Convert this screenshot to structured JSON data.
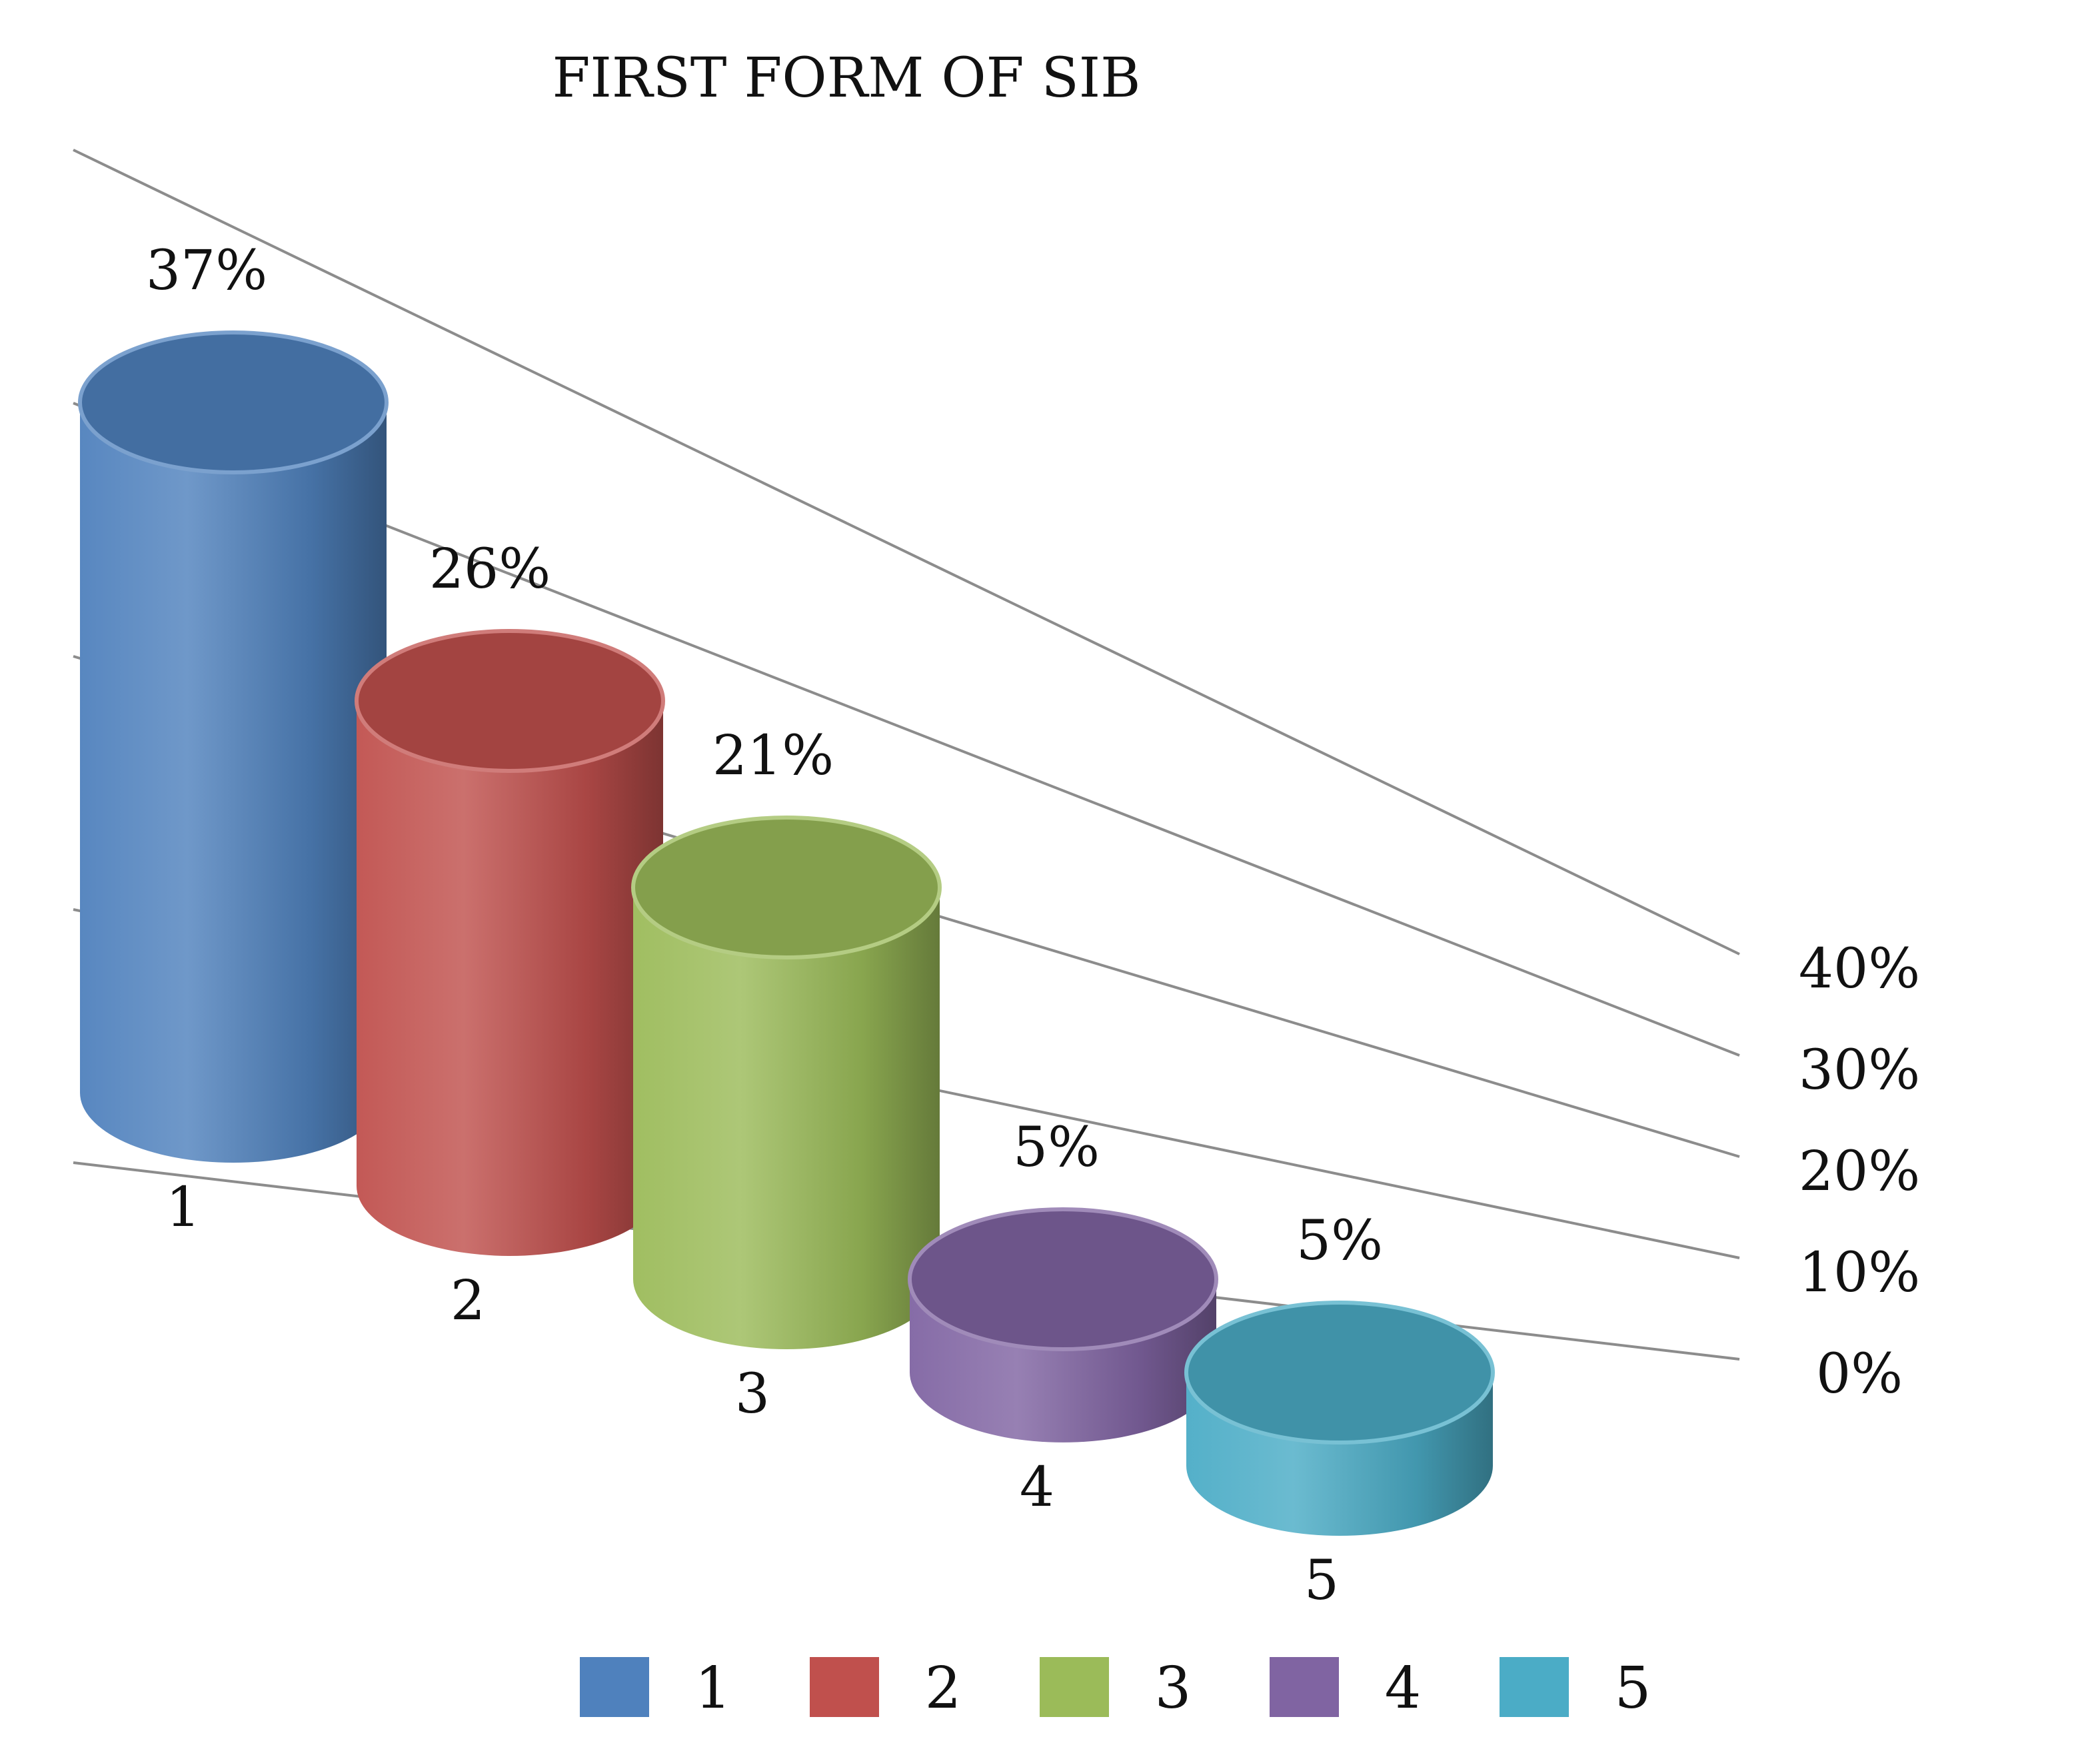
{
  "chart_data": {
    "type": "bar",
    "style": "3d-cylinder",
    "title": "FIRST FORM OF SIB",
    "categories": [
      "1",
      "2",
      "3",
      "4",
      "5"
    ],
    "values": [
      37,
      26,
      21,
      5,
      5
    ],
    "value_labels": [
      "37%",
      "26%",
      "21%",
      "5%",
      "5%"
    ],
    "colors": [
      "#4F81BD",
      "#C0504D",
      "#9BBB59",
      "#8064A2",
      "#4BACC6"
    ],
    "y_ticks": [
      0,
      10,
      20,
      30,
      40
    ],
    "y_tick_labels": [
      "0%",
      "10%",
      "20%",
      "30%",
      "40%"
    ],
    "ylim": [
      0,
      40
    ],
    "grid": true,
    "legend": {
      "position": "bottom",
      "entries": [
        "1",
        "2",
        "3",
        "4",
        "5"
      ]
    }
  }
}
